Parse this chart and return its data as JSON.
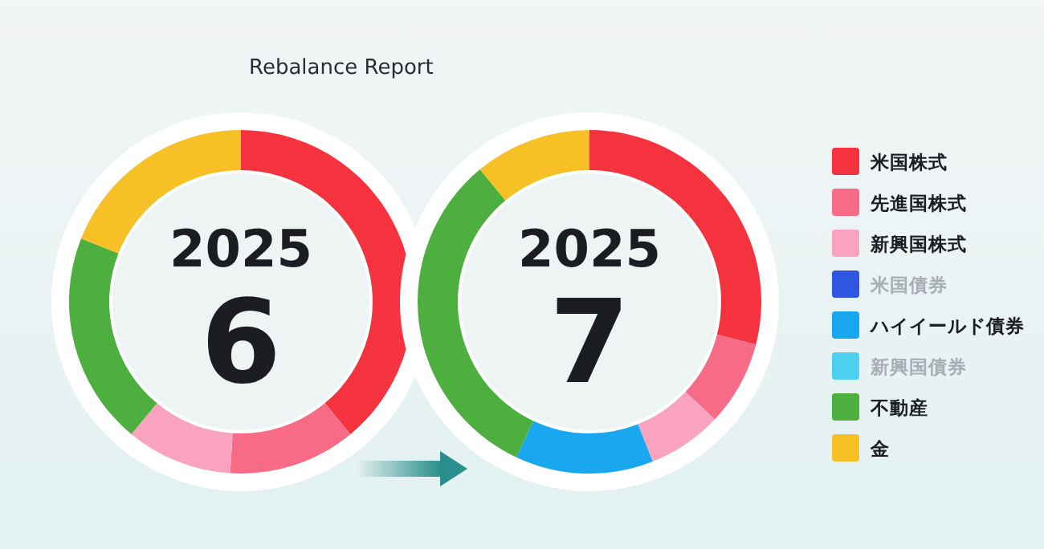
{
  "chart_data": {
    "type": "donut",
    "annotations": [
      "Rebalance Report",
      "2025",
      "6",
      "2025",
      "7"
    ],
    "categories": [
      "米国株式",
      "先進国株式",
      "新興国株式",
      "米国債券",
      "ハイイールド債券",
      "新興国債券",
      "不動産",
      "金"
    ],
    "colors": [
      "#f5333f",
      "#f76b86",
      "#f9a3c0",
      "#2f56e0",
      "#19a7f0",
      "#4dd0f0",
      "#4caf3e",
      "#f6c026"
    ],
    "legend": "right",
    "series": [
      {
        "values": [
          39,
          12,
          10,
          0,
          0,
          0,
          20,
          19
        ]
      },
      {
        "values": [
          29,
          8,
          7,
          0,
          13,
          0,
          32,
          11
        ]
      }
    ]
  }
}
